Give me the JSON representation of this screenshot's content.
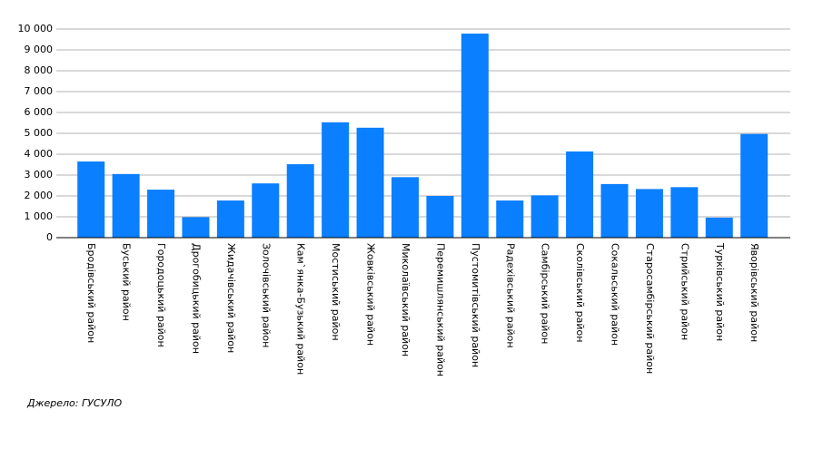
{
  "chart_data": {
    "type": "bar",
    "categories": [
      "Бродівський район",
      "Буський район",
      "Городоцький район",
      "Дрогобицький район",
      "Жидачівський район",
      "Золочівський район",
      "Кам`янка-Бузький район",
      "Мостиський район",
      "Жовківський район",
      "Миколаївський район",
      "Перемишлянський район",
      "Пустомитівський район",
      "Радехівський район",
      "Самбірський район",
      "Сколівський район",
      "Сокальський район",
      "Старосамбірський район",
      "Стрийський район",
      "Турківський район",
      "Яворівський район"
    ],
    "values": [
      3650,
      3050,
      2300,
      980,
      1780,
      2600,
      3520,
      5530,
      5270,
      2900,
      2000,
      9780,
      1780,
      2030,
      4130,
      2570,
      2330,
      2420,
      960,
      4970
    ],
    "color": "#0a7fff",
    "ylim": [
      0,
      10000
    ],
    "yticks": [
      0,
      {
        "value": 1000,
        "label": "1 000"
      },
      {
        "value": 2000,
        "label": "2 000"
      },
      {
        "value": 3000,
        "label": "3 000"
      },
      {
        "value": 4000,
        "label": "4 000"
      },
      {
        "value": 5000,
        "label": "5 000"
      },
      {
        "value": 6000,
        "label": "6 000"
      },
      {
        "value": 7000,
        "label": "7 000"
      },
      {
        "value": 8000,
        "label": "8 000"
      },
      {
        "value": 9000,
        "label": "9 000"
      },
      {
        "value": 10000,
        "label": "10 000"
      }
    ],
    "grid": true,
    "source": "Джерело: ГУСУЛО"
  }
}
